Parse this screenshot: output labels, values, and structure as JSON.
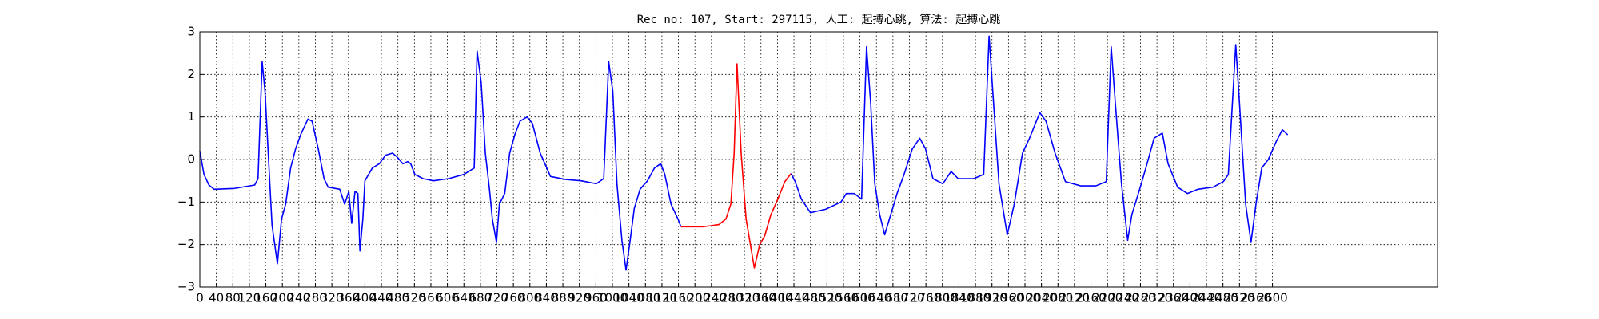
{
  "chart_data": {
    "type": "line",
    "title": "Rec_no: 107, Start: 297115, 人工: 起搏心跳, 算法: 起搏心跳",
    "xlim": [
      0,
      3000
    ],
    "ylim": [
      -3,
      3
    ],
    "xticks": [
      0,
      40,
      80,
      120,
      160,
      200,
      240,
      280,
      320,
      360,
      400,
      440,
      480,
      520,
      560,
      600,
      640,
      680,
      720,
      760,
      800,
      840,
      880,
      920,
      960,
      1000,
      1040,
      1080,
      1120,
      1160,
      1200,
      1240,
      1280,
      1320,
      1360,
      1400,
      1440,
      1480,
      1520,
      1560,
      1600,
      1640,
      1680,
      1720,
      1760,
      1800,
      1840,
      1880,
      1920,
      1960,
      2000,
      2040,
      2080,
      2120,
      2160,
      2200,
      2240,
      2280,
      2320,
      2360,
      2400,
      2440,
      2480,
      2520,
      2560,
      2600
    ],
    "yticks": [
      {
        "value": -3,
        "label": "−3"
      },
      {
        "value": -2,
        "label": "−2"
      },
      {
        "value": -1,
        "label": "−1"
      },
      0,
      1,
      2,
      3
    ],
    "grid": true,
    "series": [
      {
        "color": "#0000ff",
        "x": [
          0,
          10,
          22,
          35,
          84,
          133,
          141,
          151,
          158,
          166,
          175,
          188,
          198,
          208,
          220,
          232,
          245,
          262,
          272,
          287,
          301,
          311,
          339,
          351,
          361,
          368,
          376,
          383,
          388,
          395,
          400,
          418,
          435,
          450,
          467,
          479,
          492,
          504,
          511,
          521,
          541,
          566,
          603,
          640,
          665,
          672,
          682,
          692,
          702,
          709,
          719,
          726,
          739,
          751,
          764,
          776,
          793,
          806,
          825,
          850,
          887,
          924,
          961,
          979,
          991,
          1001,
          1011,
          1023,
          1033,
          1043,
          1053,
          1067,
          1085,
          1102,
          1117,
          1127,
          1142,
          1159,
          1166
        ],
        "values": [
          0.2,
          -0.35,
          -0.6,
          -0.7,
          -0.68,
          -0.6,
          -0.45,
          2.3,
          1.6,
          0.1,
          -1.55,
          -2.45,
          -1.4,
          -1.05,
          -0.2,
          0.25,
          0.6,
          0.95,
          0.9,
          0.25,
          -0.45,
          -0.65,
          -0.7,
          -1.05,
          -0.75,
          -1.5,
          -0.75,
          -0.8,
          -2.15,
          -1.4,
          -0.5,
          -0.2,
          -0.1,
          0.1,
          0.15,
          0.05,
          -0.1,
          -0.05,
          -0.1,
          -0.35,
          -0.45,
          -0.5,
          -0.45,
          -0.35,
          -0.2,
          2.55,
          1.8,
          0.15,
          -0.7,
          -1.4,
          -1.95,
          -1.05,
          -0.8,
          0.15,
          0.6,
          0.9,
          1.0,
          0.85,
          0.15,
          -0.4,
          -0.47,
          -0.5,
          -0.57,
          -0.45,
          2.3,
          1.6,
          -0.57,
          -1.9,
          -2.6,
          -1.9,
          -1.15,
          -0.7,
          -0.5,
          -0.2,
          -0.1,
          -0.35,
          -1.05,
          -1.4,
          -1.58
        ]
      },
      {
        "color": "#ff0000",
        "x": [
          1166,
          1221,
          1258,
          1275,
          1287,
          1295,
          1302,
          1312,
          1324,
          1337,
          1344,
          1357,
          1369,
          1384,
          1401,
          1418,
          1433
        ],
        "values": [
          -1.58,
          -1.58,
          -1.53,
          -1.4,
          -1.05,
          0.15,
          2.25,
          0.15,
          -1.4,
          -2.15,
          -2.55,
          -2.0,
          -1.8,
          -1.3,
          -0.93,
          -0.52,
          -0.33
        ]
      },
      {
        "color": "#0000ff",
        "x": [
          1433,
          1443,
          1458,
          1480,
          1517,
          1554,
          1567,
          1586,
          1604,
          1616,
          1626,
          1636,
          1648,
          1660,
          1673,
          1690,
          1707,
          1727,
          1745,
          1759,
          1777,
          1801,
          1821,
          1838,
          1876,
          1900,
          1913,
          1922,
          1937,
          1957,
          1974,
          1994,
          2011,
          2036,
          2051,
          2073,
          2098,
          2135,
          2172,
          2197,
          2209,
          2219,
          2234,
          2249,
          2259,
          2278,
          2296,
          2313,
          2333,
          2347,
          2370,
          2394,
          2419,
          2456,
          2481,
          2493,
          2511,
          2520,
          2535,
          2548,
          2560,
          2574,
          2590,
          2608,
          2624,
          2637
        ],
        "values": [
          -0.33,
          -0.52,
          -0.93,
          -1.25,
          -1.17,
          -1.0,
          -0.8,
          -0.8,
          -0.93,
          2.65,
          1.33,
          -0.57,
          -1.3,
          -1.77,
          -1.35,
          -0.8,
          -0.35,
          0.25,
          0.5,
          0.25,
          -0.45,
          -0.57,
          -0.28,
          -0.45,
          -0.45,
          -0.35,
          2.9,
          1.6,
          -0.57,
          -1.77,
          -1.05,
          0.15,
          0.5,
          1.1,
          0.9,
          0.15,
          -0.52,
          -0.62,
          -0.62,
          -0.52,
          2.65,
          1.33,
          -0.57,
          -1.9,
          -1.3,
          -0.7,
          -0.1,
          0.5,
          0.62,
          -0.1,
          -0.65,
          -0.8,
          -0.7,
          -0.65,
          -0.52,
          -0.35,
          2.7,
          1.33,
          -1.05,
          -1.95,
          -1.05,
          -0.2,
          0.0,
          0.4,
          0.7,
          0.58
        ]
      }
    ]
  }
}
